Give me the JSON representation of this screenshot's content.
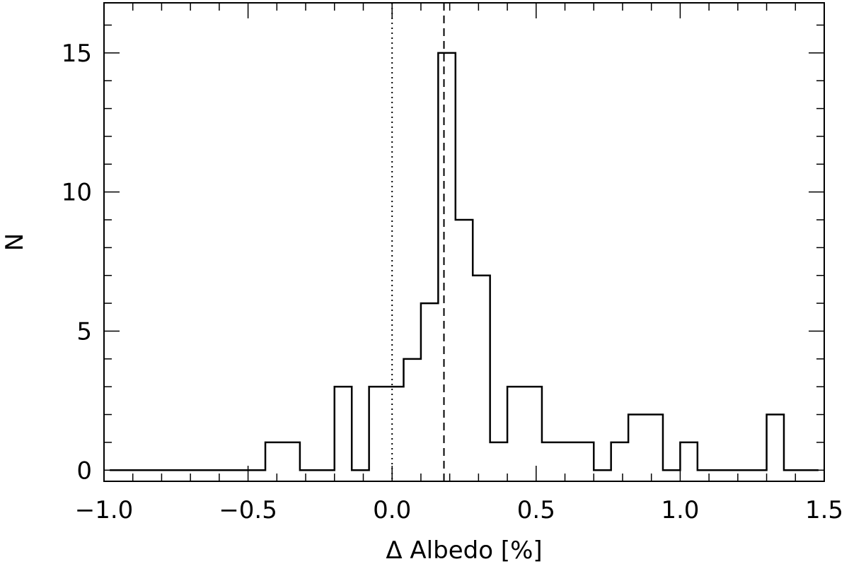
{
  "chart_data": {
    "type": "step-histogram",
    "title": "",
    "xlabel": "Δ Albedo [%]",
    "ylabel": "N",
    "xlim": [
      -1.0,
      1.5
    ],
    "ylim": [
      -0.4,
      16.8
    ],
    "grid": false,
    "x_ticks": [
      -1.0,
      -0.5,
      0.0,
      0.5,
      1.0,
      1.5
    ],
    "x_tick_labels": [
      "−1.0",
      "−0.5",
      "0.0",
      "0.5",
      "1.0",
      "1.5"
    ],
    "y_ticks": [
      0,
      5,
      10,
      15
    ],
    "y_tick_labels": [
      "0",
      "5",
      "10",
      "15"
    ],
    "bin_edges": [
      -0.98,
      -0.92,
      -0.86,
      -0.8,
      -0.74,
      -0.68,
      -0.62,
      -0.56,
      -0.5,
      -0.44,
      -0.38,
      -0.32,
      -0.26,
      -0.2,
      -0.14,
      -0.08,
      -0.02,
      0.04,
      0.1,
      0.16,
      0.22,
      0.28,
      0.34,
      0.4,
      0.46,
      0.52,
      0.58,
      0.64,
      0.7,
      0.76,
      0.82,
      0.88,
      0.94,
      1.0,
      1.06,
      1.12,
      1.18,
      1.24,
      1.3,
      1.36,
      1.42,
      1.48
    ],
    "counts": [
      0,
      0,
      0,
      0,
      0,
      0,
      0,
      0,
      0,
      1,
      1,
      0,
      0,
      3,
      0,
      3,
      3,
      4,
      6,
      15,
      9,
      7,
      1,
      3,
      3,
      1,
      1,
      1,
      0,
      1,
      2,
      2,
      0,
      1,
      0,
      0,
      0,
      0,
      2,
      0,
      0
    ],
    "reference_lines": [
      {
        "x": 0.0,
        "style": "dotted"
      },
      {
        "x": 0.18,
        "style": "dashed"
      }
    ]
  }
}
